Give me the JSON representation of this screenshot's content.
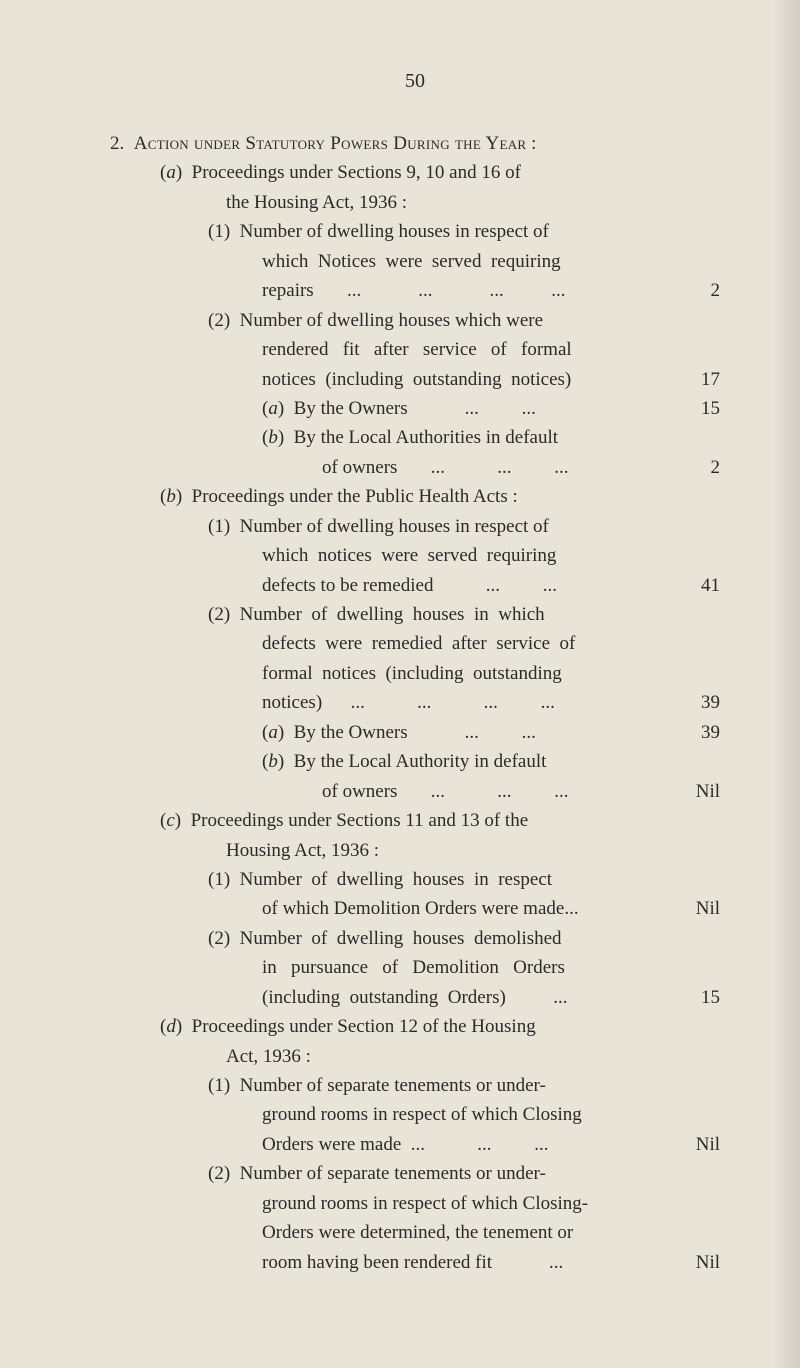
{
  "page_number": "50",
  "lines": [
    {
      "cls": "ind-num",
      "html": "2.&nbsp;&nbsp;<span class='sc'>Action under Statutory Powers During the Year</span> :",
      "val": ""
    },
    {
      "cls": "ind-a",
      "html": "(<i>a</i>)&nbsp;&nbsp;Proceedings under Sections 9, 10 and 16 of",
      "val": ""
    },
    {
      "cls": "ind-a-cont",
      "html": "the Housing Act, 1936 :",
      "val": ""
    },
    {
      "cls": "ind-1",
      "html": "(1)&nbsp;&nbsp;Number of dwelling houses in respect of",
      "val": ""
    },
    {
      "cls": "ind-1-cont justify",
      "html": "which&nbsp; Notices&nbsp; were&nbsp; served&nbsp; requiring",
      "val": ""
    },
    {
      "cls": "ind-1-cont",
      "html": "repairs&nbsp;&nbsp;&nbsp;&nbsp;&nbsp;&nbsp;&nbsp;...&nbsp;&nbsp;&nbsp;&nbsp;&nbsp;&nbsp;&nbsp;&nbsp;&nbsp;&nbsp;&nbsp;&nbsp;...&nbsp;&nbsp;&nbsp;&nbsp;&nbsp;&nbsp;&nbsp;&nbsp;&nbsp;&nbsp;&nbsp;&nbsp;...&nbsp;&nbsp;&nbsp;&nbsp;&nbsp;&nbsp;&nbsp;&nbsp;&nbsp;&nbsp;...",
      "val": "2"
    },
    {
      "cls": "ind-1",
      "html": "(2)&nbsp;&nbsp;Number of dwelling houses which were",
      "val": ""
    },
    {
      "cls": "ind-1-cont justify",
      "html": "rendered&nbsp;&nbsp; fit&nbsp;&nbsp; after&nbsp;&nbsp; service&nbsp;&nbsp; of&nbsp;&nbsp; formal",
      "val": ""
    },
    {
      "cls": "ind-1-cont",
      "html": "notices&nbsp; (including&nbsp; outstanding&nbsp; notices)",
      "val": "17"
    },
    {
      "cls": "ind-ab",
      "html": "(<i>a</i>)&nbsp;&nbsp;By the Owners&nbsp;&nbsp;&nbsp;&nbsp;&nbsp;&nbsp;&nbsp;&nbsp;&nbsp;&nbsp;&nbsp;&nbsp;...&nbsp;&nbsp;&nbsp;&nbsp;&nbsp;&nbsp;&nbsp;&nbsp;&nbsp;...",
      "val": "15"
    },
    {
      "cls": "ind-ab",
      "html": "(<i>b</i>)&nbsp;&nbsp;By the Local Authorities in default",
      "val": ""
    },
    {
      "cls": "ind-ab-cont",
      "html": "of owners&nbsp;&nbsp;&nbsp;&nbsp;&nbsp;&nbsp;&nbsp;...&nbsp;&nbsp;&nbsp;&nbsp;&nbsp;&nbsp;&nbsp;&nbsp;&nbsp;&nbsp;&nbsp;...&nbsp;&nbsp;&nbsp;&nbsp;&nbsp;&nbsp;&nbsp;&nbsp;&nbsp;...",
      "val": "2"
    },
    {
      "cls": "ind-a",
      "html": "(<i>b</i>)&nbsp;&nbsp;Proceedings under the Public Health Acts :",
      "val": ""
    },
    {
      "cls": "ind-1",
      "html": "(1)&nbsp;&nbsp;Number of dwelling houses in respect of",
      "val": ""
    },
    {
      "cls": "ind-1-cont justify",
      "html": "which&nbsp; notices&nbsp; were&nbsp; served&nbsp; requiring",
      "val": ""
    },
    {
      "cls": "ind-1-cont",
      "html": "defects to be remedied&nbsp;&nbsp;&nbsp;&nbsp;&nbsp;&nbsp;&nbsp;&nbsp;&nbsp;&nbsp;&nbsp;...&nbsp;&nbsp;&nbsp;&nbsp;&nbsp;&nbsp;&nbsp;&nbsp;&nbsp;...",
      "val": "41"
    },
    {
      "cls": "ind-1",
      "html": "(2)&nbsp;&nbsp;Number&nbsp; of&nbsp; dwelling&nbsp; houses&nbsp; in&nbsp; which",
      "val": ""
    },
    {
      "cls": "ind-1-cont justify",
      "html": "defects&nbsp; were&nbsp; remedied&nbsp; after&nbsp; service&nbsp; of",
      "val": ""
    },
    {
      "cls": "ind-1-cont justify",
      "html": "formal&nbsp; notices&nbsp; (including&nbsp; outstanding",
      "val": ""
    },
    {
      "cls": "ind-1-cont",
      "html": "notices)&nbsp;&nbsp;&nbsp;&nbsp;&nbsp;&nbsp;...&nbsp;&nbsp;&nbsp;&nbsp;&nbsp;&nbsp;&nbsp;&nbsp;&nbsp;&nbsp;&nbsp;...&nbsp;&nbsp;&nbsp;&nbsp;&nbsp;&nbsp;&nbsp;&nbsp;&nbsp;&nbsp;&nbsp;...&nbsp;&nbsp;&nbsp;&nbsp;&nbsp;&nbsp;&nbsp;&nbsp;&nbsp;...",
      "val": "39"
    },
    {
      "cls": "ind-ab",
      "html": "(<i>a</i>)&nbsp;&nbsp;By the Owners&nbsp;&nbsp;&nbsp;&nbsp;&nbsp;&nbsp;&nbsp;&nbsp;&nbsp;&nbsp;&nbsp;&nbsp;...&nbsp;&nbsp;&nbsp;&nbsp;&nbsp;&nbsp;&nbsp;&nbsp;&nbsp;...",
      "val": "39"
    },
    {
      "cls": "ind-ab",
      "html": "(<i>b</i>)&nbsp;&nbsp;By the Local Authority in default",
      "val": ""
    },
    {
      "cls": "ind-ab-cont",
      "html": "of owners&nbsp;&nbsp;&nbsp;&nbsp;&nbsp;&nbsp;&nbsp;...&nbsp;&nbsp;&nbsp;&nbsp;&nbsp;&nbsp;&nbsp;&nbsp;&nbsp;&nbsp;&nbsp;...&nbsp;&nbsp;&nbsp;&nbsp;&nbsp;&nbsp;&nbsp;&nbsp;&nbsp;...",
      "val": "Nil"
    },
    {
      "cls": "ind-a",
      "html": "(<i>c</i>)&nbsp;&nbsp;Proceedings under Sections 11 and 13 of the",
      "val": ""
    },
    {
      "cls": "ind-a-cont",
      "html": "Housing Act, 1936 :",
      "val": ""
    },
    {
      "cls": "ind-1",
      "html": "(1)&nbsp;&nbsp;Number&nbsp; of&nbsp; dwelling&nbsp; houses&nbsp; in&nbsp; respect",
      "val": ""
    },
    {
      "cls": "ind-1-cont",
      "html": "of which Demolition Orders were made...",
      "val": "Nil"
    },
    {
      "cls": "ind-1",
      "html": "(2)&nbsp;&nbsp;Number&nbsp; of&nbsp; dwelling&nbsp; houses&nbsp; demolished",
      "val": ""
    },
    {
      "cls": "ind-1-cont justify",
      "html": "in&nbsp;&nbsp; pursuance&nbsp;&nbsp; of&nbsp;&nbsp; Demolition&nbsp;&nbsp; Orders",
      "val": ""
    },
    {
      "cls": "ind-1-cont",
      "html": "(including&nbsp; outstanding&nbsp; Orders)&nbsp;&nbsp;&nbsp;&nbsp;&nbsp;&nbsp;&nbsp;&nbsp;&nbsp;&nbsp;...",
      "val": "15"
    },
    {
      "cls": "ind-a",
      "html": "(<i>d</i>)&nbsp;&nbsp;Proceedings under Section 12 of the Housing",
      "val": ""
    },
    {
      "cls": "ind-a-cont",
      "html": "Act, 1936 :",
      "val": ""
    },
    {
      "cls": "ind-1",
      "html": "(1)&nbsp;&nbsp;Number of separate tenements or under-",
      "val": ""
    },
    {
      "cls": "ind-1-cont",
      "html": "ground rooms in respect of which Closing",
      "val": ""
    },
    {
      "cls": "ind-1-cont",
      "html": "Orders were made&nbsp;&nbsp;...&nbsp;&nbsp;&nbsp;&nbsp;&nbsp;&nbsp;&nbsp;&nbsp;&nbsp;&nbsp;&nbsp;...&nbsp;&nbsp;&nbsp;&nbsp;&nbsp;&nbsp;&nbsp;&nbsp;&nbsp;...",
      "val": "Nil"
    },
    {
      "cls": "ind-1",
      "html": "(2)&nbsp;&nbsp;Number of separate tenements or under-",
      "val": ""
    },
    {
      "cls": "ind-1-cont",
      "html": "ground rooms in respect of which Closing-",
      "val": ""
    },
    {
      "cls": "ind-1-cont",
      "html": "Orders were determined, the tenement or",
      "val": ""
    },
    {
      "cls": "ind-1-cont",
      "html": "room having been rendered fit&nbsp;&nbsp;&nbsp;&nbsp;&nbsp;&nbsp;&nbsp;&nbsp;&nbsp;&nbsp;&nbsp;&nbsp;...",
      "val": "Nil"
    }
  ]
}
